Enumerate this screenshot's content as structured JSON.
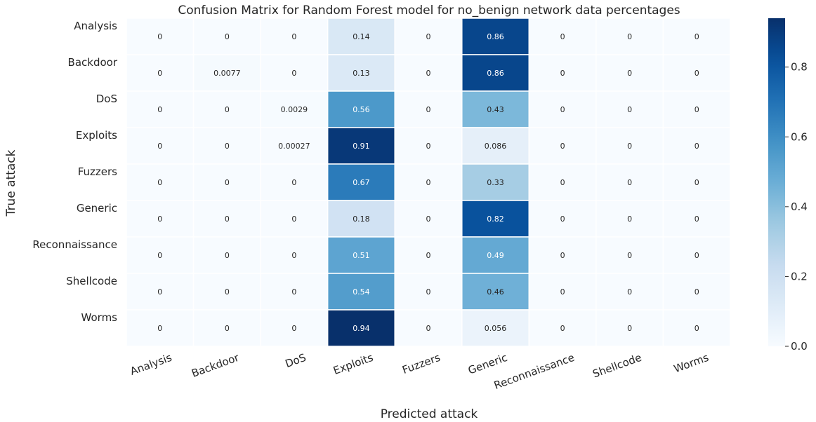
{
  "chart_data": {
    "type": "heatmap",
    "title": "Confusion Matrix for Random Forest model for no_benign network data percentages",
    "xlabel": "Predicted attack",
    "ylabel": "True attack",
    "x_categories": [
      "Analysis",
      "Backdoor",
      "DoS",
      "Exploits",
      "Fuzzers",
      "Generic",
      "Reconnaissance",
      "Shellcode",
      "Worms"
    ],
    "y_categories": [
      "Analysis",
      "Backdoor",
      "DoS",
      "Exploits",
      "Fuzzers",
      "Generic",
      "Reconnaissance",
      "Shellcode",
      "Worms"
    ],
    "values": [
      [
        0,
        0,
        0,
        0.14,
        0,
        0.86,
        0,
        0,
        0
      ],
      [
        0,
        0.0077,
        0,
        0.13,
        0,
        0.86,
        0,
        0,
        0
      ],
      [
        0,
        0,
        0.0029,
        0.56,
        0,
        0.43,
        0,
        0,
        0
      ],
      [
        0,
        0,
        0.00027,
        0.91,
        0,
        0.086,
        0,
        0,
        0
      ],
      [
        0,
        0,
        0,
        0.67,
        0,
        0.33,
        0,
        0,
        0
      ],
      [
        0,
        0,
        0,
        0.18,
        0,
        0.82,
        0,
        0,
        0
      ],
      [
        0,
        0,
        0,
        0.51,
        0,
        0.49,
        0,
        0,
        0
      ],
      [
        0,
        0,
        0,
        0.54,
        0,
        0.46,
        0,
        0,
        0
      ],
      [
        0,
        0,
        0,
        0.94,
        0,
        0.056,
        0,
        0,
        0
      ]
    ],
    "value_labels": [
      [
        "0",
        "0",
        "0",
        "0.14",
        "0",
        "0.86",
        "0",
        "0",
        "0"
      ],
      [
        "0",
        "0.0077",
        "0",
        "0.13",
        "0",
        "0.86",
        "0",
        "0",
        "0"
      ],
      [
        "0",
        "0",
        "0.0029",
        "0.56",
        "0",
        "0.43",
        "0",
        "0",
        "0"
      ],
      [
        "0",
        "0",
        "0.00027",
        "0.91",
        "0",
        "0.086",
        "0",
        "0",
        "0"
      ],
      [
        "0",
        "0",
        "0",
        "0.67",
        "0",
        "0.33",
        "0",
        "0",
        "0"
      ],
      [
        "0",
        "0",
        "0",
        "0.18",
        "0",
        "0.82",
        "0",
        "0",
        "0"
      ],
      [
        "0",
        "0",
        "0",
        "0.51",
        "0",
        "0.49",
        "0",
        "0",
        "0"
      ],
      [
        "0",
        "0",
        "0",
        "0.54",
        "0",
        "0.46",
        "0",
        "0",
        "0"
      ],
      [
        "0",
        "0",
        "0",
        "0.94",
        "0",
        "0.056",
        "0",
        "0",
        "0"
      ]
    ],
    "colormap": "Blues",
    "colorbar": {
      "range": [
        0,
        0.94
      ],
      "ticks": [
        0.0,
        0.2,
        0.4,
        0.6,
        0.8
      ],
      "tick_labels": [
        "0.0",
        "0.2",
        "0.4",
        "0.6",
        "0.8"
      ],
      "position": "right"
    },
    "xtick_rotation_deg": 20,
    "cell_border_color": "#ffffff"
  }
}
